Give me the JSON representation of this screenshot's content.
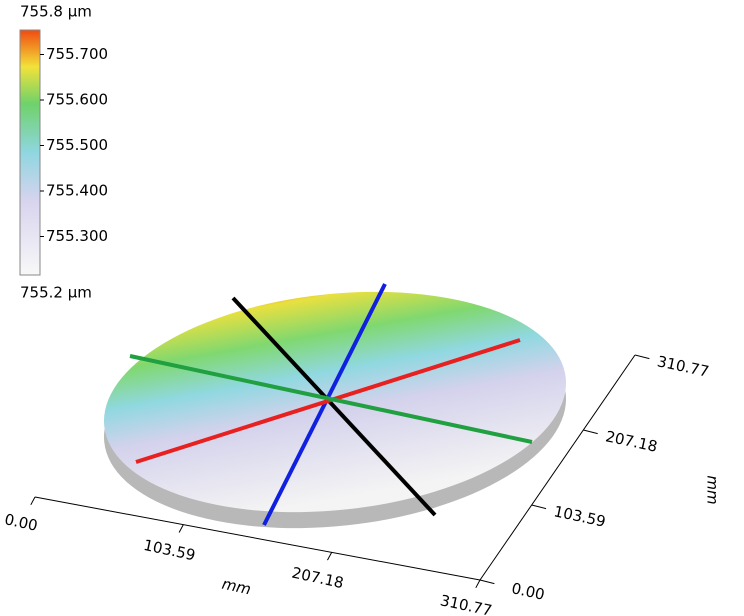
{
  "chart_data": {
    "type": "surface",
    "colorbar": {
      "range": [
        {
          "value": 755.2,
          "label": "755.2 µm"
        },
        {
          "value": 755.8,
          "label": "755.8 µm"
        }
      ],
      "ticks": [
        {
          "value": 755.3,
          "label": "755.300"
        },
        {
          "value": 755.4,
          "label": "755.400"
        },
        {
          "value": 755.5,
          "label": "755.500"
        },
        {
          "value": 755.6,
          "label": "755.600"
        },
        {
          "value": 755.7,
          "label": "755.700"
        }
      ]
    },
    "xlabel": "mm",
    "ylabel": "mm",
    "xlim": [
      0,
      310.77
    ],
    "ylim": [
      0,
      310.77
    ],
    "xticks": [
      {
        "value": 0,
        "label": "0.00"
      },
      103.59,
      207.18,
      310.77
    ],
    "yticks": [
      {
        "value": 0,
        "label": "0.00"
      },
      103.59,
      207.18,
      310.77
    ]
  }
}
